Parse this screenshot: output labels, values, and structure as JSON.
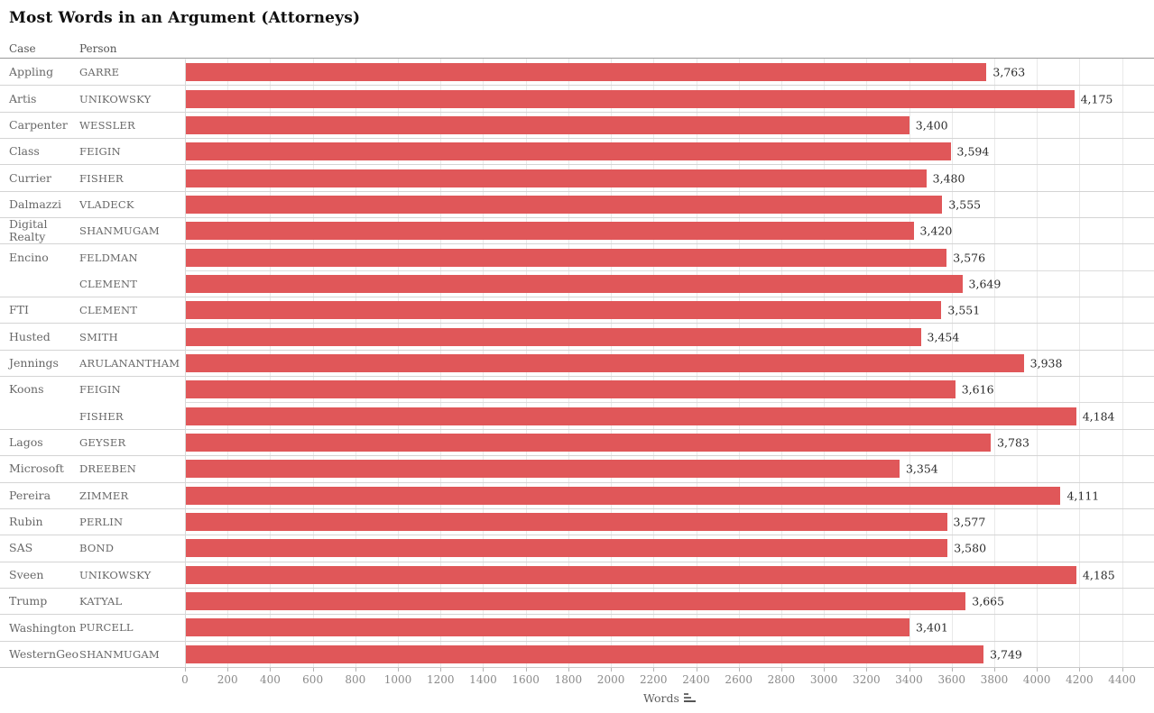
{
  "title": "Most Words in an Argument (Attorneys)",
  "column_headers": {
    "case": "Case",
    "person": "Person"
  },
  "axis": {
    "label": "Words",
    "max_value": 4550,
    "ticks": [
      0,
      200,
      400,
      600,
      800,
      1000,
      1200,
      1400,
      1600,
      1800,
      2000,
      2200,
      2400,
      2600,
      2800,
      3000,
      3200,
      3400,
      3600,
      3800,
      4000,
      4200,
      4400
    ]
  },
  "colors": {
    "bar": "#e05759",
    "gridline": "#e9e9e9",
    "group_divider": "#d4d4d4",
    "row_divider": "#dcdcdc",
    "header_line": "#9a9a9a",
    "label_text": "#686868",
    "value_text": "#2b2b2b",
    "tick_text": "#8a8a8a"
  },
  "icons": {
    "axis_sort": "sort-descending-icon"
  },
  "chart_data": {
    "type": "bar",
    "orientation": "horizontal",
    "title": "Most Words in an Argument (Attorneys)",
    "xlabel": "Words",
    "xlim": [
      0,
      4400
    ],
    "tick_step": 200,
    "grid": true,
    "bar_color": "#e05759",
    "row_fields": [
      "Case",
      "Person"
    ],
    "value_field": "Words",
    "rows": [
      {
        "case": "Appling",
        "person": "GARRE",
        "value": 3763,
        "label": "3,763"
      },
      {
        "case": "Artis",
        "person": "UNIKOWSKY",
        "value": 4175,
        "label": "4,175"
      },
      {
        "case": "Carpenter",
        "person": "WESSLER",
        "value": 3400,
        "label": "3,400"
      },
      {
        "case": "Class",
        "person": "FEIGIN",
        "value": 3594,
        "label": "3,594"
      },
      {
        "case": "Currier",
        "person": "FISHER",
        "value": 3480,
        "label": "3,480"
      },
      {
        "case": "Dalmazzi",
        "person": "VLADECK",
        "value": 3555,
        "label": "3,555"
      },
      {
        "case": "Digital Realty",
        "person": "SHANMUGAM",
        "value": 3420,
        "label": "3,420"
      },
      {
        "case": "Encino",
        "person": "FELDMAN",
        "value": 3576,
        "label": "3,576"
      },
      {
        "case": "",
        "person": "CLEMENT",
        "value": 3649,
        "label": "3,649"
      },
      {
        "case": "FTI",
        "person": "CLEMENT",
        "value": 3551,
        "label": "3,551"
      },
      {
        "case": "Husted",
        "person": "SMITH",
        "value": 3454,
        "label": "3,454"
      },
      {
        "case": "Jennings",
        "person": "ARULANANTHAM",
        "value": 3938,
        "label": "3,938"
      },
      {
        "case": "Koons",
        "person": "FEIGIN",
        "value": 3616,
        "label": "3,616"
      },
      {
        "case": "",
        "person": "FISHER",
        "value": 4184,
        "label": "4,184"
      },
      {
        "case": "Lagos",
        "person": "GEYSER",
        "value": 3783,
        "label": "3,783"
      },
      {
        "case": "Microsoft",
        "person": "DREEBEN",
        "value": 3354,
        "label": "3,354"
      },
      {
        "case": "Pereira",
        "person": "ZIMMER",
        "value": 4111,
        "label": "4,111"
      },
      {
        "case": "Rubin",
        "person": "PERLIN",
        "value": 3577,
        "label": "3,577"
      },
      {
        "case": "SAS",
        "person": "BOND",
        "value": 3580,
        "label": "3,580"
      },
      {
        "case": "Sveen",
        "person": "UNIKOWSKY",
        "value": 4185,
        "label": "4,185"
      },
      {
        "case": "Trump",
        "person": "KATYAL",
        "value": 3665,
        "label": "3,665"
      },
      {
        "case": "Washington",
        "person": "PURCELL",
        "value": 3401,
        "label": "3,401"
      },
      {
        "case": "WesternGeo",
        "person": "SHANMUGAM",
        "value": 3749,
        "label": "3,749"
      }
    ]
  }
}
